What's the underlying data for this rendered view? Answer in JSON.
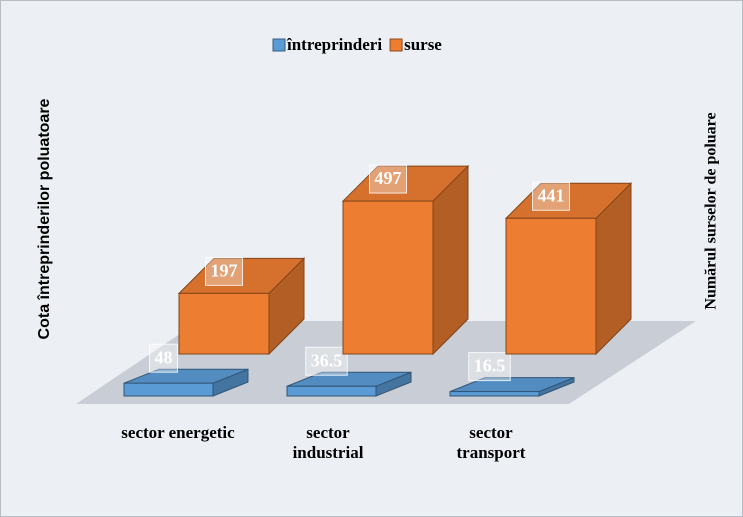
{
  "chart_data": {
    "type": "bar3d",
    "categories": [
      "sector energetic",
      "sector\nindustrial",
      "sector\ntransport"
    ],
    "series": [
      {
        "name": "întreprinderi",
        "color": "#5b9bd5",
        "values": [
          48,
          36.5,
          16.5
        ],
        "axis": "y"
      },
      {
        "name": "surse",
        "color": "#ed7d31",
        "values": [
          197,
          497,
          441
        ],
        "axis": "y2"
      }
    ],
    "ylabel": "Cota întreprinderilor poluatoare",
    "y2label": "Numărul surselor de poluare",
    "ylim": [
      0,
      1500
    ],
    "y2lim": [
      0,
      1300
    ],
    "legend": "top"
  }
}
